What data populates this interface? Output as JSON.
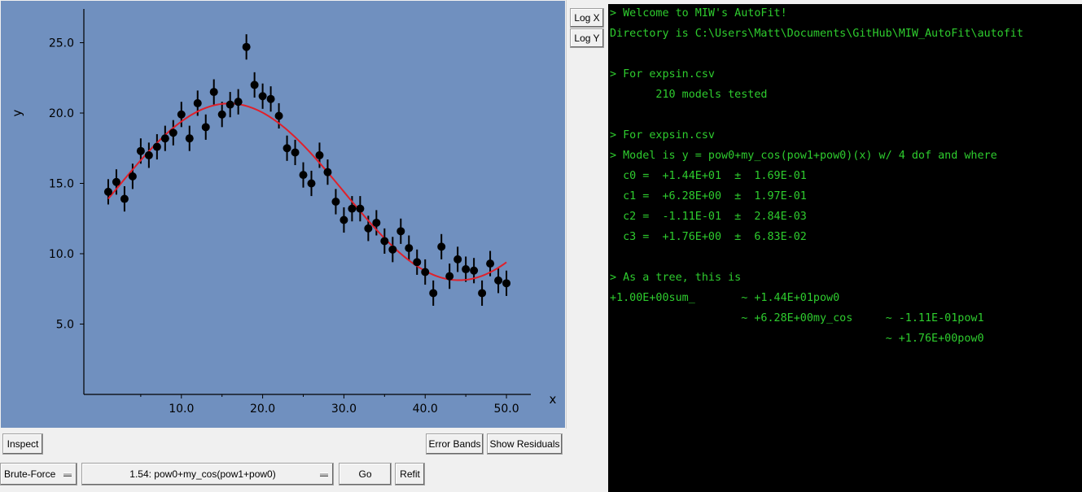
{
  "plot": {
    "background": "#7090bf",
    "fit_color": "#e0202a",
    "xlabel": "x",
    "ylabel": "y",
    "x_ticks": [
      "10.0",
      "20.0",
      "30.0",
      "40.0",
      "50.0"
    ],
    "y_ticks": [
      "5.0",
      "10.0",
      "15.0",
      "20.0",
      "25.0"
    ]
  },
  "chart_data": {
    "type": "scatter",
    "xlabel": "x",
    "ylabel": "y",
    "xlim": [
      -2,
      53
    ],
    "ylim": [
      0,
      27.4
    ],
    "x_ticks": [
      10,
      20,
      30,
      40,
      50
    ],
    "y_ticks": [
      5,
      10,
      15,
      20,
      25
    ],
    "grid": false,
    "series": [
      {
        "points": [
          [
            1,
            14.4
          ],
          [
            2,
            15.1
          ],
          [
            3,
            13.9
          ],
          [
            4,
            15.5
          ],
          [
            5,
            17.3
          ],
          [
            6,
            17.0
          ],
          [
            7,
            17.6
          ],
          [
            8,
            18.2
          ],
          [
            9,
            18.6
          ],
          [
            10,
            19.9
          ],
          [
            11,
            18.2
          ],
          [
            12,
            20.7
          ],
          [
            13,
            19.0
          ],
          [
            14,
            21.5
          ],
          [
            15,
            19.9
          ],
          [
            16,
            20.6
          ],
          [
            17,
            20.8
          ],
          [
            18,
            24.7
          ],
          [
            19,
            22.0
          ],
          [
            20,
            21.2
          ],
          [
            21,
            21.0
          ],
          [
            22,
            19.8
          ],
          [
            23,
            17.5
          ],
          [
            24,
            17.2
          ],
          [
            25,
            15.6
          ],
          [
            26,
            15.0
          ],
          [
            27,
            17.0
          ],
          [
            28,
            15.8
          ],
          [
            29,
            13.7
          ],
          [
            30,
            12.4
          ],
          [
            31,
            13.2
          ],
          [
            32,
            13.2
          ],
          [
            33,
            11.8
          ],
          [
            34,
            12.2
          ],
          [
            35,
            10.9
          ],
          [
            36,
            10.3
          ],
          [
            37,
            11.6
          ],
          [
            38,
            10.4
          ],
          [
            39,
            9.4
          ],
          [
            40,
            8.7
          ],
          [
            41,
            7.2
          ],
          [
            42,
            10.5
          ],
          [
            43,
            8.4
          ],
          [
            44,
            9.6
          ],
          [
            45,
            8.9
          ],
          [
            46,
            8.8
          ],
          [
            47,
            7.2
          ],
          [
            48,
            9.3
          ],
          [
            49,
            8.1
          ],
          [
            50,
            7.9
          ]
        ],
        "error": 0.9
      },
      {
        "fit_model": "pow0+my_cos(pow1+pow0)",
        "params": {
          "c0": 14.4,
          "c1": 6.28,
          "c2": -0.111,
          "c3": 1.76
        },
        "x_range": [
          1,
          50
        ]
      }
    ]
  },
  "buttons": {
    "log_x": "Log X",
    "log_y": "Log Y",
    "inspect": "Inspect",
    "error_bands": "Error Bands",
    "show_residuals": "Show Residuals",
    "brute_force": "Brute-Force",
    "model_select": "1.54: pow0+my_cos(pow1+pow0)",
    "go": "Go",
    "refit": "Refit"
  },
  "console": {
    "background": "#000000",
    "text_color": "#2ecc2e",
    "lines": [
      "> Welcome to MIW's AutoFit!",
      "Directory is C:\\Users\\Matt\\Documents\\GitHub\\MIW_AutoFit\\autofit",
      "",
      "> For expsin.csv",
      "       210 models tested",
      "",
      "> For expsin.csv",
      "> Model is y = pow0+my_cos(pow1+pow0)(x) w/ 4 dof and where",
      "  c0 =  +1.44E+01  ±  1.69E-01",
      "  c1 =  +6.28E+00  ±  1.97E-01",
      "  c2 =  -1.11E-01  ±  2.84E-03",
      "  c3 =  +1.76E+00  ±  6.83E-02",
      "",
      "> As a tree, this is",
      "+1.00E+00sum_       ~ +1.44E+01pow0",
      "                    ~ +6.28E+00my_cos     ~ -1.11E-01pow1",
      "                                          ~ +1.76E+00pow0"
    ]
  }
}
